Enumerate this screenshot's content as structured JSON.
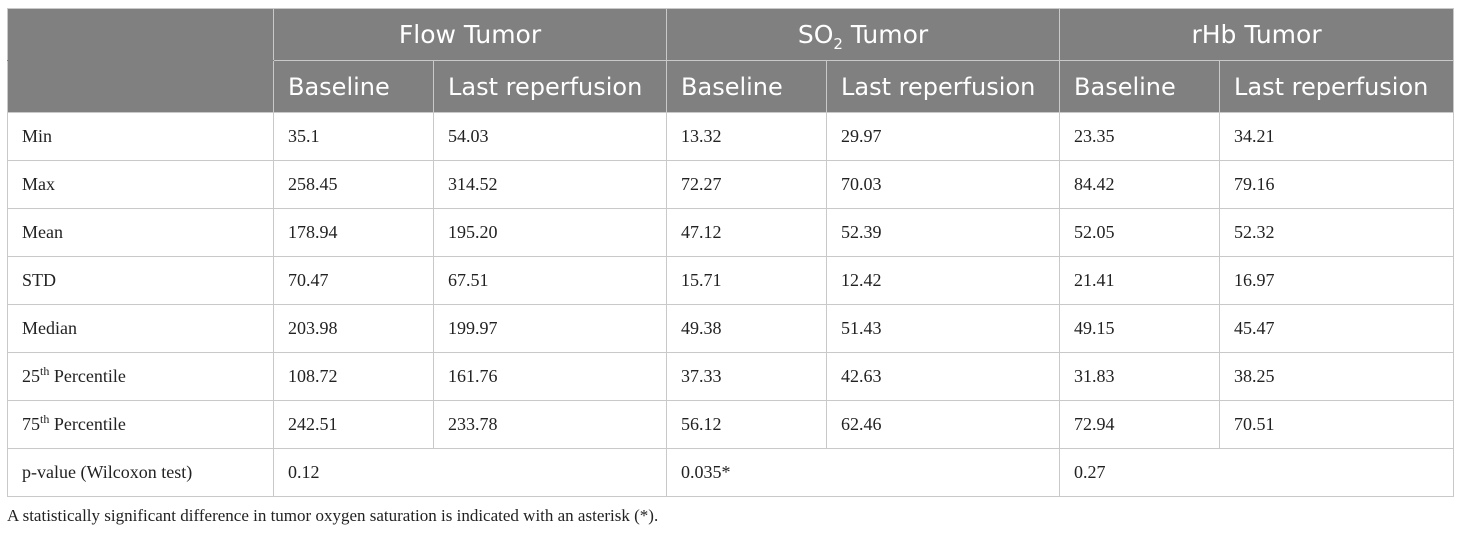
{
  "groups": [
    {
      "label": "Flow Tumor"
    },
    {
      "label_main": "SO",
      "label_sub": "2",
      "label_rest": " Tumor"
    },
    {
      "label": "rHb Tumor"
    }
  ],
  "subheaders": [
    "Baseline",
    "Last reperfusion",
    "Baseline",
    "Last reperfusion",
    "Baseline",
    "Last reperfusion"
  ],
  "rows": [
    {
      "label": "Min",
      "values": [
        "35.1",
        "54.03",
        "13.32",
        "29.97",
        "23.35",
        "34.21"
      ]
    },
    {
      "label": "Max",
      "values": [
        "258.45",
        "314.52",
        "72.27",
        "70.03",
        "84.42",
        "79.16"
      ]
    },
    {
      "label": "Mean",
      "values": [
        "178.94",
        "195.20",
        "47.12",
        "52.39",
        "52.05",
        "52.32"
      ]
    },
    {
      "label": "STD",
      "values": [
        "70.47",
        "67.51",
        "15.71",
        "12.42",
        "21.41",
        "16.97"
      ]
    },
    {
      "label": "Median",
      "values": [
        "203.98",
        "199.97",
        "49.38",
        "51.43",
        "49.15",
        "45.47"
      ]
    },
    {
      "label_num": "25",
      "label_sup": "th",
      "label_rest": " Percentile",
      "values": [
        "108.72",
        "161.76",
        "37.33",
        "42.63",
        "31.83",
        "38.25"
      ]
    },
    {
      "label_num": "75",
      "label_sup": "th",
      "label_rest": " Percentile",
      "values": [
        "242.51",
        "233.78",
        "56.12",
        "62.46",
        "72.94",
        "70.51"
      ]
    }
  ],
  "pvalue_row": {
    "label": "p-value (Wilcoxon test)",
    "values": [
      "0.12",
      "0.035*",
      "0.27"
    ]
  },
  "footnote": "A statistically significant difference in tumor oxygen saturation is indicated with an asterisk (*).",
  "colors": {
    "header_bg": "#808080",
    "header_text": "#ffffff",
    "border": "#c9c9c9"
  }
}
